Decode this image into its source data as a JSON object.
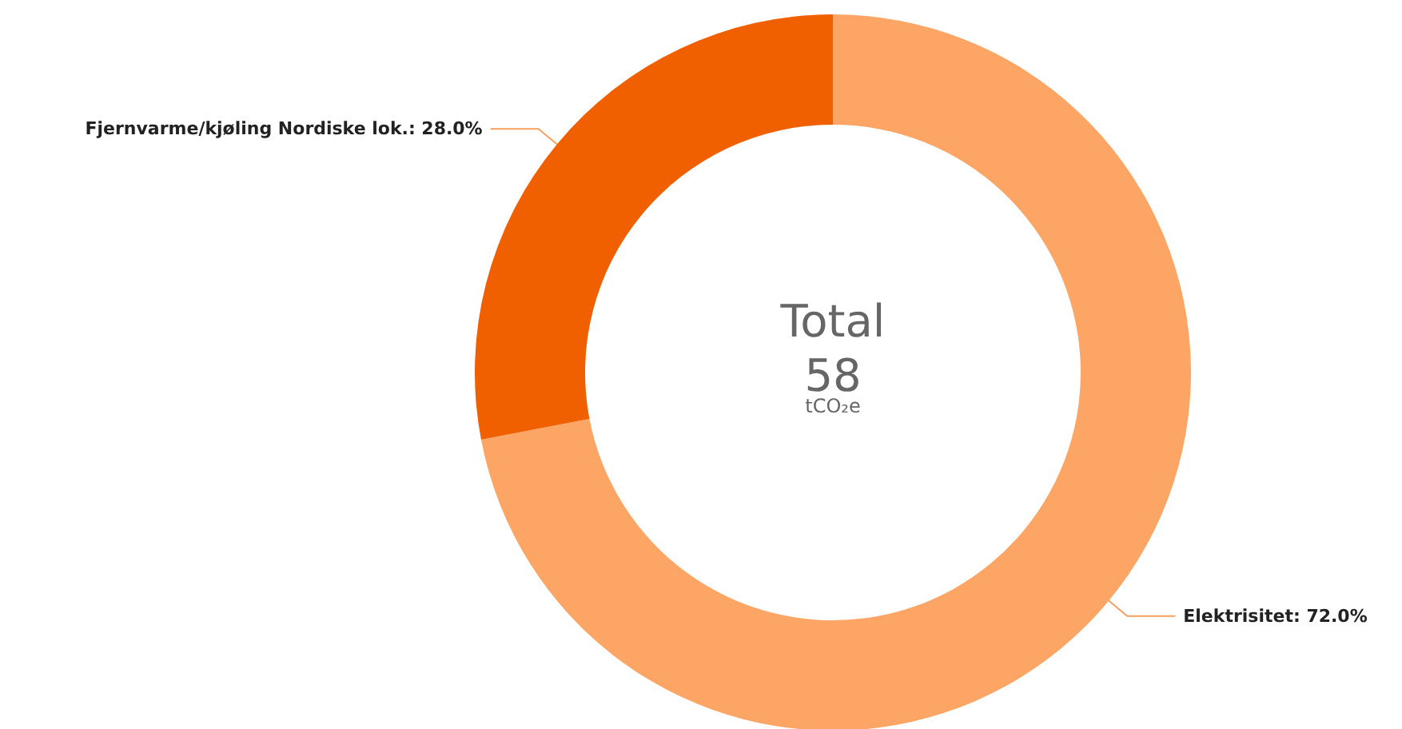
{
  "chart_data": {
    "type": "donut",
    "categories": [
      "Elektrisitet",
      "Fjernvarme/kjøling Nordiske lok."
    ],
    "values": [
      72.0,
      28.0
    ],
    "value_labels": [
      "72.0%",
      "28.0%"
    ],
    "colors": [
      "#fca565",
      "#f06000"
    ],
    "annotations": [
      "Total",
      "58",
      "tCO₂e"
    ],
    "legend": false
  }
}
